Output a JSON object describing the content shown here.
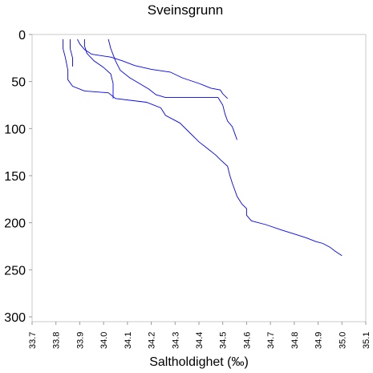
{
  "chart_data": {
    "type": "line",
    "title": "Sveinsgrunn",
    "xlabel": "Saltholdighet (‰)",
    "ylabel": "",
    "xlim": [
      33.7,
      35.1
    ],
    "ylim": [
      300,
      0
    ],
    "y_inverted": true,
    "grid": false,
    "line_color": "#0000ff",
    "x_ticks": [
      "33.7",
      "33.8",
      "33.9",
      "34.0",
      "34.1",
      "34.2",
      "34.3",
      "34.4",
      "34.5",
      "34.6",
      "34.7",
      "34.8",
      "34.9",
      "35.0",
      "35.1"
    ],
    "y_ticks": [
      "0",
      "50",
      "100",
      "150",
      "200",
      "250",
      "300"
    ],
    "series": [
      {
        "points": [
          [
            33.83,
            5
          ],
          [
            33.83,
            15
          ],
          [
            33.84,
            25
          ],
          [
            33.85,
            38
          ],
          [
            33.85,
            48
          ],
          [
            33.87,
            55
          ],
          [
            33.92,
            60
          ],
          [
            34.02,
            62
          ],
          [
            34.05,
            68
          ],
          [
            34.18,
            72
          ],
          [
            34.24,
            78
          ],
          [
            34.26,
            86
          ],
          [
            34.32,
            94
          ],
          [
            34.36,
            104
          ],
          [
            34.4,
            114
          ],
          [
            34.44,
            122
          ],
          [
            34.47,
            128
          ],
          [
            34.49,
            133
          ],
          [
            34.52,
            140
          ],
          [
            34.53,
            150
          ],
          [
            34.54,
            158
          ],
          [
            34.55,
            165
          ],
          [
            34.56,
            172
          ],
          [
            34.58,
            180
          ],
          [
            34.6,
            185
          ],
          [
            34.6,
            192
          ],
          [
            34.62,
            198
          ],
          [
            34.68,
            202
          ],
          [
            34.75,
            208
          ],
          [
            34.8,
            212
          ],
          [
            34.85,
            216
          ],
          [
            34.89,
            220
          ],
          [
            34.92,
            222
          ],
          [
            34.95,
            226
          ],
          [
            34.97,
            230
          ],
          [
            35.0,
            235
          ]
        ]
      },
      {
        "points": [
          [
            33.86,
            5
          ],
          [
            33.86,
            15
          ],
          [
            33.87,
            25
          ],
          [
            33.87,
            34
          ]
        ]
      },
      {
        "points": [
          [
            33.89,
            5
          ],
          [
            33.9,
            10
          ],
          [
            33.92,
            16
          ],
          [
            33.95,
            21
          ],
          [
            34.03,
            24
          ],
          [
            34.08,
            28
          ],
          [
            34.13,
            33
          ],
          [
            34.2,
            37
          ],
          [
            34.28,
            40
          ],
          [
            34.33,
            46
          ],
          [
            34.4,
            52
          ],
          [
            34.45,
            57
          ],
          [
            34.49,
            59
          ],
          [
            34.5,
            63
          ],
          [
            34.52,
            68
          ]
        ]
      },
      {
        "points": [
          [
            33.92,
            5
          ],
          [
            33.92,
            12
          ],
          [
            33.93,
            20
          ],
          [
            33.96,
            28
          ],
          [
            34.0,
            35
          ],
          [
            34.03,
            42
          ],
          [
            34.04,
            52
          ],
          [
            34.04,
            60
          ],
          [
            34.04,
            68
          ]
        ]
      },
      {
        "points": [
          [
            34.02,
            5
          ],
          [
            34.03,
            15
          ],
          [
            34.05,
            28
          ],
          [
            34.07,
            38
          ],
          [
            34.11,
            46
          ],
          [
            34.15,
            52
          ],
          [
            34.19,
            58
          ],
          [
            34.22,
            64
          ],
          [
            34.26,
            67
          ],
          [
            34.38,
            67
          ],
          [
            34.48,
            67
          ],
          [
            34.5,
            75
          ],
          [
            34.51,
            85
          ],
          [
            34.52,
            92
          ],
          [
            34.54,
            98
          ],
          [
            34.55,
            105
          ],
          [
            34.56,
            112
          ]
        ]
      }
    ]
  }
}
